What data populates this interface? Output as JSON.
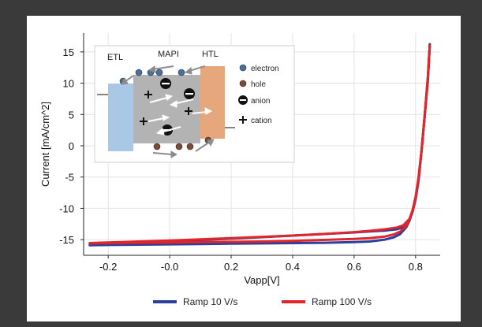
{
  "chart_data": {
    "type": "line",
    "xlabel": "Vapp[V]",
    "ylabel": "Current [mA/cm^2]",
    "xlim": [
      -0.28,
      0.88
    ],
    "ylim": [
      -17.5,
      18
    ],
    "xticks": [
      -0.2,
      0.0,
      0.2,
      0.4,
      0.6,
      0.8
    ],
    "xtick_labels": [
      "-0.2",
      "-0.0",
      "0.2",
      "0.4",
      "0.6",
      "0.8"
    ],
    "yticks": [
      -15,
      -10,
      -5,
      0,
      5,
      10,
      15
    ],
    "ytick_labels": [
      "-15",
      "-10",
      "-5",
      "0",
      "5",
      "10",
      "15"
    ],
    "grid": true,
    "legend_position": "bottom",
    "series": [
      {
        "name": "Ramp 10 V/s",
        "color": "#2b3f9e",
        "forward": {
          "x": [
            -0.26,
            -0.2,
            -0.1,
            0.0,
            0.1,
            0.2,
            0.3,
            0.4,
            0.5,
            0.6,
            0.65,
            0.7,
            0.73,
            0.75,
            0.77,
            0.78,
            0.79,
            0.8,
            0.81,
            0.82,
            0.83,
            0.84,
            0.846
          ],
          "y": [
            -15.9,
            -15.85,
            -15.8,
            -15.75,
            -15.7,
            -15.65,
            -15.6,
            -15.55,
            -15.5,
            -15.4,
            -15.3,
            -15.0,
            -14.6,
            -14.1,
            -13.0,
            -12.0,
            -10.5,
            -8.3,
            -5.0,
            -0.5,
            5.0,
            10.5,
            16.2
          ]
        },
        "reverse": {
          "x": [
            0.846,
            0.84,
            0.83,
            0.82,
            0.81,
            0.8,
            0.79,
            0.78,
            0.76,
            0.74,
            0.72,
            0.7,
            0.65,
            0.6,
            0.5,
            0.4,
            0.3,
            0.2,
            0.1,
            0.0,
            -0.1,
            -0.2,
            -0.26
          ],
          "y": [
            16.2,
            11.0,
            5.0,
            -0.5,
            -5.5,
            -8.6,
            -10.6,
            -11.9,
            -13.0,
            -13.35,
            -13.45,
            -13.55,
            -13.7,
            -13.85,
            -14.1,
            -14.35,
            -14.6,
            -14.85,
            -15.05,
            -15.25,
            -15.45,
            -15.6,
            -15.75
          ]
        }
      },
      {
        "name": "Ramp 100 V/s",
        "color": "#e0262a",
        "forward": {
          "x": [
            -0.26,
            -0.2,
            -0.1,
            0.0,
            0.1,
            0.2,
            0.3,
            0.4,
            0.5,
            0.6,
            0.65,
            0.7,
            0.73,
            0.75,
            0.77,
            0.78,
            0.79,
            0.8,
            0.81,
            0.82,
            0.83,
            0.84,
            0.846
          ],
          "y": [
            -15.6,
            -15.55,
            -15.5,
            -15.45,
            -15.4,
            -15.35,
            -15.3,
            -15.2,
            -15.05,
            -14.9,
            -14.75,
            -14.5,
            -14.15,
            -13.7,
            -12.8,
            -11.8,
            -10.3,
            -8.2,
            -5.0,
            -0.5,
            5.0,
            10.5,
            16.0
          ]
        },
        "reverse": {
          "x": [
            0.846,
            0.84,
            0.83,
            0.82,
            0.81,
            0.8,
            0.79,
            0.78,
            0.76,
            0.74,
            0.72,
            0.7,
            0.65,
            0.6,
            0.5,
            0.4,
            0.3,
            0.2,
            0.1,
            0.0,
            -0.1,
            -0.2,
            -0.26
          ],
          "y": [
            16.0,
            11.0,
            5.0,
            -0.5,
            -5.3,
            -8.4,
            -10.4,
            -11.7,
            -12.7,
            -13.05,
            -13.2,
            -13.35,
            -13.6,
            -13.8,
            -14.1,
            -14.35,
            -14.55,
            -14.75,
            -14.95,
            -15.15,
            -15.3,
            -15.45,
            -15.55
          ]
        }
      }
    ]
  },
  "inset": {
    "labels": {
      "etl": "ETL",
      "mapi": "MAPI",
      "htl": "HTL"
    },
    "legend": {
      "electron": "electron",
      "hole": "hole",
      "anion": "anion",
      "cation": "cation"
    },
    "colors": {
      "etl": "#a9c8e6",
      "mapi": "#b3b3b3",
      "htl": "#e6a77c",
      "electron": "#4c6f99",
      "hole": "#7a4a3c"
    }
  }
}
